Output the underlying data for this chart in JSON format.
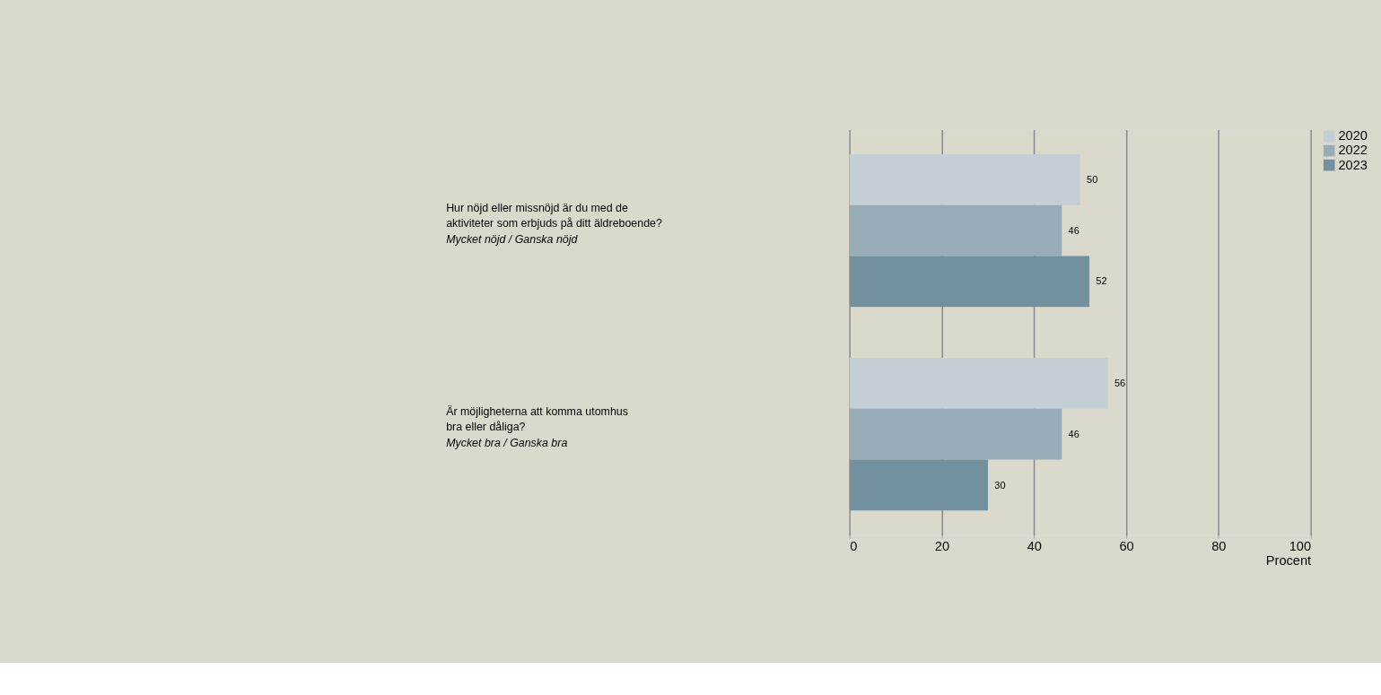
{
  "chart_data": {
    "type": "bar",
    "orientation": "horizontal",
    "categories": [
      "Hur nöjd eller missnöjd är du med de\naktiviteter som erbjuds på ditt äldreboende?\nMycket nöjd / Ganska nöjd",
      "Är möjligheterna att komma utomhus\nbra eller dåliga?\nMycket bra / Ganska bra"
    ],
    "series": [
      {
        "name": "2020",
        "color": "#c3cfd5",
        "values": [
          50,
          56
        ]
      },
      {
        "name": "2022",
        "color": "#98acb7",
        "values": [
          46,
          46
        ]
      },
      {
        "name": "2023",
        "color": "#73909e",
        "values": [
          52,
          30
        ]
      }
    ],
    "xlabel": "Procent",
    "xlim": [
      0,
      100
    ],
    "xticks": [
      0,
      20,
      40,
      60,
      80,
      100
    ],
    "grid": "x",
    "legend": "right",
    "data_labels": true
  }
}
